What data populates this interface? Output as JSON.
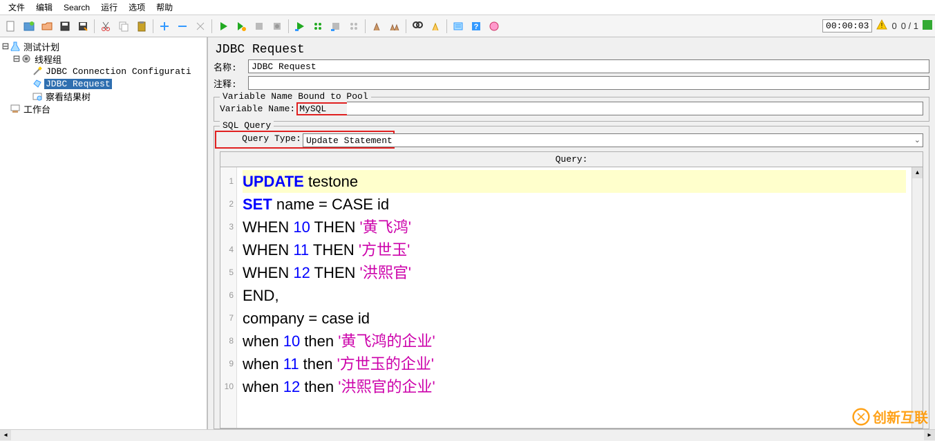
{
  "menu": {
    "items": [
      "文件",
      "编辑",
      "Search",
      "运行",
      "选项",
      "帮助"
    ]
  },
  "toolbar": {
    "timer": "00:00:03",
    "warn_count": "0",
    "counter": "0 / 1"
  },
  "tree": {
    "root": "测试计划",
    "thread_group": "线程组",
    "items": [
      "JDBC Connection Configurati",
      "JDBC Request",
      "察看结果树"
    ],
    "selected_index": 1,
    "workbench": "工作台"
  },
  "panel": {
    "title": "JDBC Request",
    "name_label": "名称:",
    "name_value": "JDBC Request",
    "comment_label": "注释:",
    "comment_value": "",
    "var_legend": "Variable Name Bound to Pool",
    "var_label": "Variable Name:",
    "var_value": "MySQL",
    "sql_legend": "SQL Query",
    "qt_label": "Query Type:",
    "qt_value": "Update Statement",
    "query_header": "Query:"
  },
  "code": {
    "lines": [
      {
        "n": 1,
        "hl": true,
        "tokens": [
          {
            "t": "UPDATE",
            "c": "kw"
          },
          {
            "t": " testone",
            "c": ""
          }
        ]
      },
      {
        "n": 2,
        "tokens": [
          {
            "t": "SET",
            "c": "kw"
          },
          {
            "t": " name = CASE id",
            "c": ""
          }
        ]
      },
      {
        "n": 3,
        "tokens": [
          {
            "t": "WHEN ",
            "c": ""
          },
          {
            "t": "10",
            "c": "num"
          },
          {
            "t": " THEN ",
            "c": ""
          },
          {
            "t": "'黄飞鸿'",
            "c": "str"
          }
        ]
      },
      {
        "n": 4,
        "tokens": [
          {
            "t": "WHEN ",
            "c": ""
          },
          {
            "t": "11",
            "c": "num"
          },
          {
            "t": " THEN ",
            "c": ""
          },
          {
            "t": "'方世玉'",
            "c": "str"
          }
        ]
      },
      {
        "n": 5,
        "tokens": [
          {
            "t": "WHEN ",
            "c": ""
          },
          {
            "t": "12",
            "c": "num"
          },
          {
            "t": " THEN ",
            "c": ""
          },
          {
            "t": "'洪熙官'",
            "c": "str"
          }
        ]
      },
      {
        "n": 6,
        "tokens": [
          {
            "t": "END,",
            "c": ""
          }
        ]
      },
      {
        "n": 7,
        "tokens": [
          {
            "t": "company = case id",
            "c": ""
          }
        ]
      },
      {
        "n": 8,
        "tokens": [
          {
            "t": "when ",
            "c": ""
          },
          {
            "t": "10",
            "c": "num"
          },
          {
            "t": " then ",
            "c": ""
          },
          {
            "t": "'黄飞鸿的企业'",
            "c": "str"
          }
        ]
      },
      {
        "n": 9,
        "tokens": [
          {
            "t": "when ",
            "c": ""
          },
          {
            "t": "11",
            "c": "num"
          },
          {
            "t": " then ",
            "c": ""
          },
          {
            "t": "'方世玉的企业'",
            "c": "str"
          }
        ]
      },
      {
        "n": 10,
        "tokens": [
          {
            "t": "when ",
            "c": ""
          },
          {
            "t": "12",
            "c": "num"
          },
          {
            "t": " then ",
            "c": ""
          },
          {
            "t": "'洪熙官的企业'",
            "c": "str"
          }
        ]
      }
    ]
  },
  "watermark": "创新互联",
  "colors": {
    "selection_bg": "#2f6fb0",
    "highlight_border": "#e02020",
    "keyword": "#0000ff",
    "string": "#cc00aa",
    "current_line": "#ffffcc"
  }
}
